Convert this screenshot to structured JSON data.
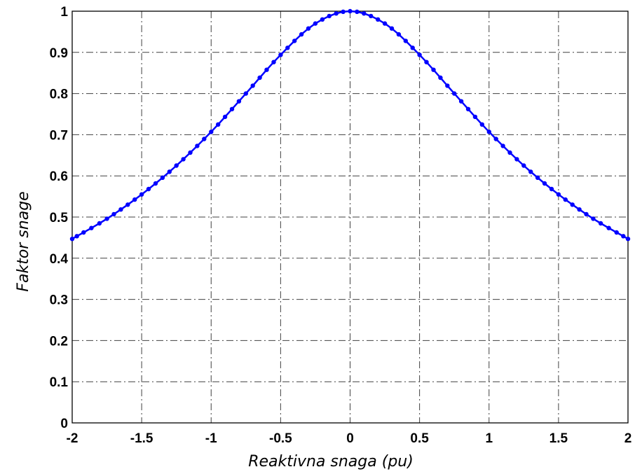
{
  "chart_data": {
    "type": "line",
    "xlabel": "Reaktivna snaga (pu)",
    "ylabel": "Faktor snage",
    "xlim": [
      -2,
      2
    ],
    "ylim": [
      0,
      1
    ],
    "xticks": [
      -2,
      -1.5,
      -1,
      -0.5,
      0,
      0.5,
      1,
      1.5,
      2
    ],
    "xtick_labels": [
      "-2",
      "-1.5",
      "-1",
      "-0.5",
      "0",
      "0.5",
      "1",
      "1.5",
      "2"
    ],
    "yticks": [
      0,
      0.1,
      0.2,
      0.3,
      0.4,
      0.5,
      0.6,
      0.7,
      0.8,
      0.9,
      1
    ],
    "ytick_labels": [
      "0",
      "0.1",
      "0.2",
      "0.3",
      "0.4",
      "0.5",
      "0.6",
      "0.7",
      "0.8",
      "0.9",
      "1"
    ],
    "grid": true,
    "series": [
      {
        "color": "#0000ff",
        "marker": "dot",
        "x": [
          -2,
          -1.75,
          -1.5,
          -1.25,
          -1,
          -0.75,
          -0.5,
          -0.25,
          0,
          0.25,
          0.5,
          0.75,
          1,
          1.25,
          1.5,
          1.75,
          2
        ],
        "y": [
          0.447,
          0.496,
          0.555,
          0.625,
          0.707,
          0.8,
          0.894,
          0.97,
          1,
          0.97,
          0.894,
          0.8,
          0.707,
          0.625,
          0.555,
          0.496,
          0.447
        ]
      }
    ]
  }
}
